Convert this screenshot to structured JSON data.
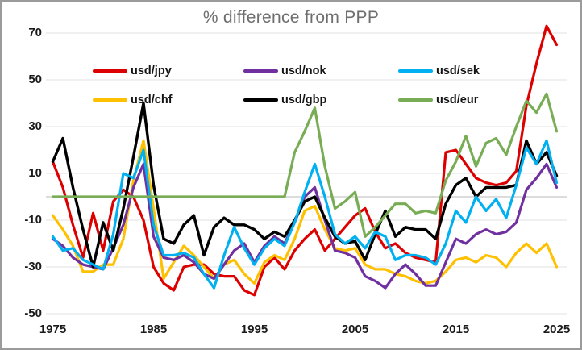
{
  "title": "% difference from PPP",
  "legend": [
    {
      "id": "usd-jpy",
      "label": "usd/jpy",
      "color": "#dd0000",
      "row": 0,
      "col": 0
    },
    {
      "id": "usd-nok",
      "label": "usd/nok",
      "color": "#7030a0",
      "row": 0,
      "col": 1
    },
    {
      "id": "usd-sek",
      "label": "usd/sek",
      "color": "#00b0f0",
      "row": 0,
      "col": 2
    },
    {
      "id": "usd-chf",
      "label": "usd/chf",
      "color": "#ffc000",
      "row": 1,
      "col": 0
    },
    {
      "id": "usd-gbp",
      "label": "usd/gbp",
      "color": "#000000",
      "row": 1,
      "col": 1
    },
    {
      "id": "usd-eur",
      "label": "usd/eur",
      "color": "#78ac55",
      "row": 1,
      "col": 2
    }
  ],
  "chart_data": {
    "type": "line",
    "title": "% difference from PPP",
    "xlabel": "",
    "ylabel": "",
    "x_axis": {
      "ticks": [
        1975,
        1985,
        1995,
        2005,
        2015,
        2025
      ],
      "min": 1975,
      "max": 2025
    },
    "y_axis": {
      "ticks": [
        70,
        50,
        30,
        10,
        -10,
        -30,
        -50
      ],
      "min": -50,
      "max": 70,
      "tick_step": 20,
      "grid": true
    },
    "legend_position": "top",
    "years": [
      1975,
      1976,
      1977,
      1978,
      1979,
      1980,
      1981,
      1982,
      1983,
      1984,
      1985,
      1986,
      1987,
      1988,
      1989,
      1990,
      1991,
      1992,
      1993,
      1994,
      1995,
      1996,
      1997,
      1998,
      1999,
      2000,
      2001,
      2002,
      2003,
      2004,
      2005,
      2006,
      2007,
      2008,
      2009,
      2010,
      2011,
      2012,
      2013,
      2014,
      2015,
      2016,
      2017,
      2018,
      2019,
      2020,
      2021,
      2022,
      2023,
      2024,
      2025
    ],
    "series": [
      {
        "name": "usd/jpy",
        "color": "#dd0000",
        "width": 3.2,
        "values": [
          15,
          4,
          -12,
          -26,
          -7,
          -23,
          -2,
          3,
          0,
          -10,
          -30,
          -37,
          -40,
          -30,
          -29,
          -29,
          -33,
          -34,
          -34,
          -40,
          -42,
          -30,
          -26,
          -31,
          -23,
          -18,
          -14,
          -23,
          -18,
          -13,
          -8,
          -5,
          -15,
          -22,
          -20,
          -24,
          -26,
          -27,
          -28,
          19,
          20,
          14,
          8,
          6,
          5,
          6,
          11,
          39,
          57,
          73,
          65
        ]
      },
      {
        "name": "usd/chf",
        "color": "#ffc000",
        "width": 3.2,
        "values": [
          -8,
          -14,
          -21,
          -32,
          -32,
          -29,
          -29,
          -18,
          7,
          24,
          -5,
          -35,
          -28,
          -21,
          -25,
          -30,
          -35,
          -29,
          -27,
          -33,
          -37,
          -28,
          -25,
          -27,
          -18,
          -6,
          -4,
          -14,
          -22,
          -23,
          -22,
          -29,
          -31,
          -31,
          -33,
          -34,
          -36,
          -37,
          -36,
          -32,
          -27,
          -26,
          -28,
          -25,
          -26,
          -30,
          -24,
          -20,
          -24,
          -20,
          -30
        ]
      },
      {
        "name": "usd/nok",
        "color": "#7030a0",
        "width": 3.2,
        "values": [
          -18,
          -21,
          -26,
          -29,
          -30,
          -31,
          -22,
          -12,
          4,
          14,
          -17,
          -26,
          -27,
          -25,
          -28,
          -33,
          -35,
          -29,
          -23,
          -20,
          -28,
          -21,
          -17,
          -20,
          -11,
          0,
          4,
          -10,
          -23,
          -24,
          -26,
          -34,
          -36,
          -39,
          -33,
          -29,
          -33,
          -38,
          -38,
          -28,
          -18,
          -20,
          -16,
          -14,
          -16,
          -15,
          -11,
          3,
          8,
          14,
          4
        ]
      },
      {
        "name": "usd/gbp",
        "color": "#000000",
        "width": 3.4,
        "values": [
          15,
          25,
          4,
          -14,
          -30,
          -11,
          -23,
          -5,
          17,
          40,
          5,
          -18,
          -20,
          -12,
          -8,
          -25,
          -13,
          -9,
          -12,
          -12,
          -14,
          -18,
          -15,
          -17,
          -10,
          -2,
          0,
          -9,
          -17,
          -20,
          -19,
          -27,
          -16,
          -6,
          -17,
          -13,
          -14,
          -14,
          -18,
          -3,
          5,
          8,
          0,
          4,
          4,
          4,
          5,
          24,
          14,
          19,
          9
        ]
      },
      {
        "name": "usd/sek",
        "color": "#00b0f0",
        "width": 3.2,
        "values": [
          -17,
          -23,
          -22,
          -27,
          -29,
          -31,
          -16,
          10,
          8,
          20,
          -12,
          -25,
          -25,
          -24,
          -26,
          -33,
          -39,
          -25,
          -13,
          -22,
          -29,
          -22,
          -18,
          -21,
          -11,
          2,
          14,
          0,
          -16,
          -20,
          -17,
          -22,
          -15,
          -17,
          -27,
          -25,
          -25,
          -26,
          -29,
          -20,
          -6,
          -11,
          0,
          -6,
          -1,
          -9,
          5,
          21,
          14,
          24,
          6
        ]
      },
      {
        "name": "usd/eur",
        "color": "#78ac55",
        "width": 3.2,
        "values": [
          0,
          0,
          0,
          0,
          0,
          0,
          0,
          0,
          0,
          0,
          0,
          0,
          0,
          0,
          0,
          0,
          0,
          0,
          0,
          0,
          0,
          0,
          0,
          0,
          19,
          28,
          38,
          13,
          -5,
          -2,
          2,
          -17,
          -13,
          -8,
          -3,
          -3,
          -7,
          -6,
          -7,
          7,
          15,
          26,
          13,
          23,
          25,
          18,
          30,
          41,
          36,
          44,
          28
        ]
      }
    ]
  },
  "style": {
    "gridline_color": "#e8e8e8",
    "zero_line_color": "#c6c6c6",
    "title_color": "#6e6e6e",
    "border_color": "#9b9b9b",
    "background": "#ffffff"
  }
}
